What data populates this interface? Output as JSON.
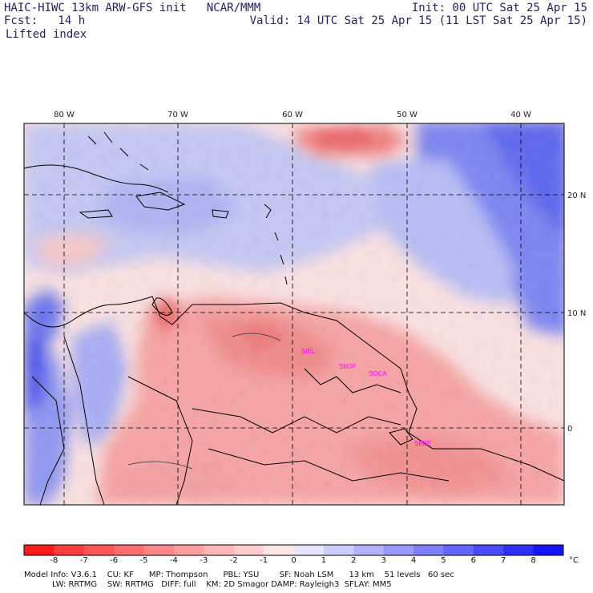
{
  "header": {
    "model_line": "HAIC-HIWC 13km ARW-GFS init   NCAR/MMM",
    "init_line": "Init: 00 UTC Sat 25 Apr 15",
    "fcst_line": "Fcst:   14 h",
    "valid_line": "Valid: 14 UTC Sat 25 Apr 15 (11 LST Sat 25 Apr 15)",
    "field_name": "Lifted index"
  },
  "map": {
    "lon_labels": [
      "80 W",
      "70 W",
      "60 W",
      "50 W",
      "40 W"
    ],
    "lat_labels": [
      "20 N",
      "10 N",
      "0"
    ],
    "stations": [
      "SIEL",
      "SMJP",
      "SOCA",
      "SBBE"
    ]
  },
  "colorbar": {
    "labels": [
      "-8",
      "-7",
      "-6",
      "-5",
      "-4",
      "-3",
      "-2",
      "-1",
      "0",
      "1",
      "2",
      "3",
      "4",
      "5",
      "6",
      "7",
      "8"
    ],
    "unit": "°C",
    "colors": [
      "#ff1a1a",
      "#ff3b3b",
      "#ff5555",
      "#ff6e6e",
      "#ff8686",
      "#ff9e9e",
      "#ffb6b6",
      "#ffcdcd",
      "#ffe6e6",
      "#e6e6ff",
      "#cdcdff",
      "#b2b2ff",
      "#9898ff",
      "#7e7eff",
      "#6464ff",
      "#4a4aff",
      "#2e2eff",
      "#1414ff"
    ]
  },
  "footer": {
    "line1": "Model Info: V3.6.1    CU: KF      MP: Thompson      PBL: YSU        SF: Noah LSM      13 km    51 levels   60 sec",
    "line2": "           LW: RRTMG    SW: RRTMG   DIFF: full    KM: 2D Smagor DAMP: Rayleigh3  SFLAY: MM5"
  }
}
